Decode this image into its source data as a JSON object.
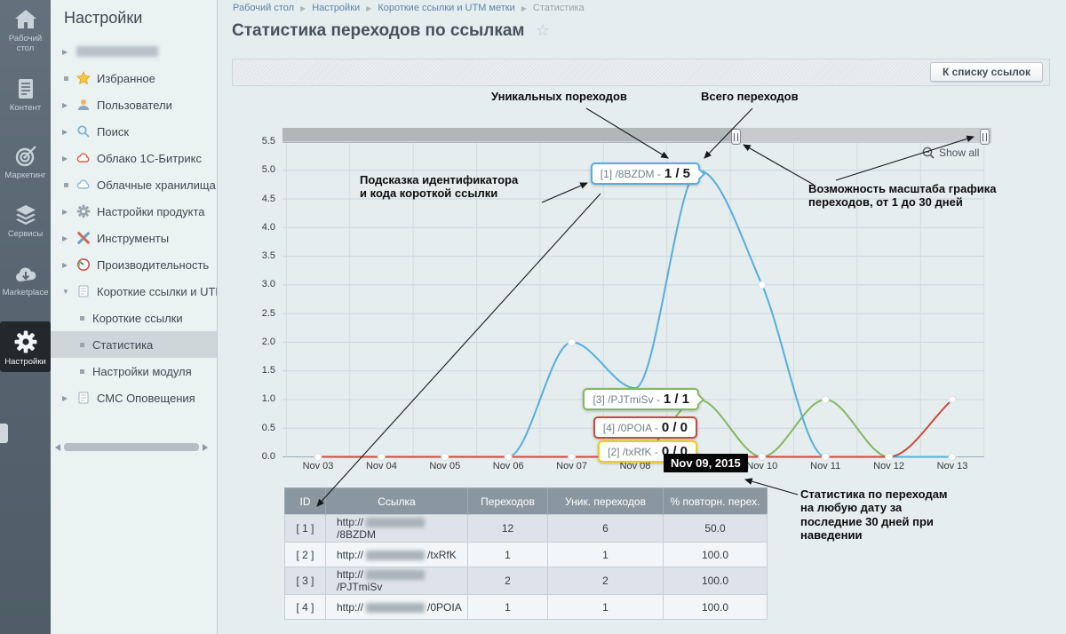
{
  "iconbar": {
    "items": [
      {
        "label": "Рабочий стол"
      },
      {
        "label": "Контент"
      },
      {
        "label": "Маркетинг"
      },
      {
        "label": "Сервисы"
      },
      {
        "label": "Marketplace"
      },
      {
        "label": "Настройки"
      }
    ]
  },
  "menu": {
    "title": "Настройки",
    "items": [
      {
        "label": ""
      },
      {
        "label": "Избранное"
      },
      {
        "label": "Пользователи"
      },
      {
        "label": "Поиск"
      },
      {
        "label": "Облако 1С-Битрикс"
      },
      {
        "label": "Облачные хранилища"
      },
      {
        "label": "Настройки продукта"
      },
      {
        "label": "Инструменты"
      },
      {
        "label": "Производительность"
      },
      {
        "label": "Короткие ссылки и UTM метки"
      },
      {
        "label": "Короткие ссылки"
      },
      {
        "label": "Статистика"
      },
      {
        "label": "Настройки модуля"
      },
      {
        "label": "СМС Оповещения"
      }
    ]
  },
  "breadcrumb": {
    "items": [
      "Рабочий стол",
      "Настройки",
      "Короткие ссылки и UTM метки",
      "Статистика"
    ]
  },
  "page": {
    "title": "Статистика переходов по ссылкам"
  },
  "toolbar": {
    "back_button": "К списку ссылок"
  },
  "chart_ui": {
    "show_all": "Show all"
  },
  "chart_data": {
    "type": "line",
    "x_categories": [
      "Nov 03",
      "Nov 04",
      "Nov 05",
      "Nov 06",
      "Nov 07",
      "Nov 08",
      "Nov 09",
      "Nov 10",
      "Nov 11",
      "Nov 12",
      "Nov 13"
    ],
    "y_ticks": [
      "0.0",
      "0.5",
      "1.0",
      "1.5",
      "2.0",
      "2.5",
      "3.0",
      "3.5",
      "4.0",
      "4.5",
      "5.0",
      "5.5"
    ],
    "ylim": [
      0,
      5.5
    ],
    "grid": true,
    "series": [
      {
        "name": "[1] /8BZDM",
        "color": "#55aedb",
        "values": [
          0,
          0,
          0,
          0,
          2,
          1.2,
          5,
          3,
          0,
          0,
          0
        ],
        "markers": [
          3,
          4,
          6,
          7,
          8
        ]
      },
      {
        "name": "[2] /txRfK",
        "color": "#f4ce00",
        "values": [
          0,
          0,
          0,
          0,
          0,
          0,
          0,
          0,
          0,
          0,
          0
        ],
        "markers": []
      },
      {
        "name": "[3] /PJTmiSv",
        "color": "#84b761",
        "values": [
          0,
          0,
          0,
          0,
          0,
          0,
          1,
          0,
          1,
          0,
          0
        ],
        "markers": [
          6,
          7,
          8,
          9,
          10
        ]
      },
      {
        "name": "[4] /0POIA",
        "color": "#c94b3d",
        "values": [
          0,
          0,
          0,
          0,
          0,
          0,
          0,
          0,
          0,
          0,
          1
        ],
        "markers": [
          0,
          1,
          2,
          3,
          4,
          5,
          6,
          7,
          8,
          9,
          10
        ]
      }
    ]
  },
  "tooltips": {
    "t1": {
      "label": "[1] /8BZDM -",
      "value": "1 / 5"
    },
    "t2": {
      "label": "[2] /txRfK -",
      "value": "0 / 0"
    },
    "t3": {
      "label": "[3] /PJTmiSv -",
      "value": "1 / 1"
    },
    "t4": {
      "label": "[4] /0POIA -",
      "value": "0 / 0"
    },
    "date": "Nov 09, 2015"
  },
  "annotations": {
    "unique": "Уникальных пореходов",
    "total": "Всего переходов",
    "hint": "Подсказка идентификатора и кода короткой ссылки",
    "zoom": "Возможность масштаба графика переходов, от 1 до 30 дней",
    "hover": "Статистика по переходам на любую дату за последние 30 дней при наведении"
  },
  "table": {
    "headers": [
      "ID",
      "Ссылка",
      "Переходов",
      "Уник. переходов",
      "% повторн. перех."
    ],
    "rows": [
      {
        "id": "[ 1 ]",
        "url_prefix": "http://",
        "code": "/8BZDM",
        "transitions": "12",
        "unique": "6",
        "repeat_pct": "50.0"
      },
      {
        "id": "[ 2 ]",
        "url_prefix": "http://",
        "code": "/txRfK",
        "transitions": "1",
        "unique": "1",
        "repeat_pct": "100.0"
      },
      {
        "id": "[ 3 ]",
        "url_prefix": "http://",
        "code": "/PJTmiSv",
        "transitions": "2",
        "unique": "2",
        "repeat_pct": "100.0"
      },
      {
        "id": "[ 4 ]",
        "url_prefix": "http://",
        "code": "/0POIA",
        "transitions": "1",
        "unique": "1",
        "repeat_pct": "100.0"
      }
    ]
  }
}
